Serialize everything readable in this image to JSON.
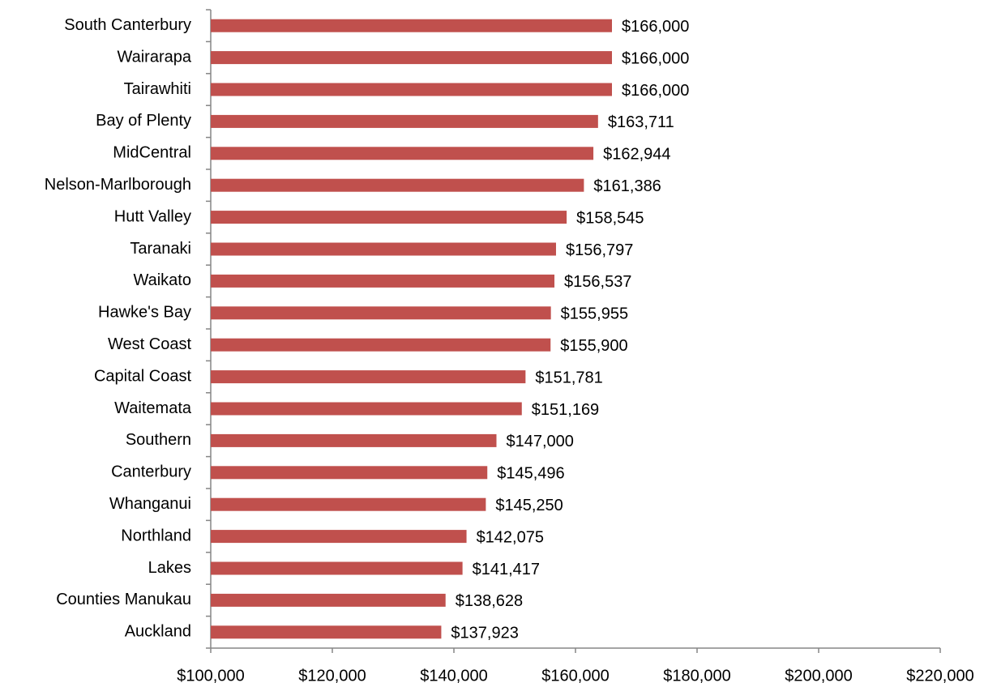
{
  "chart_data": {
    "type": "bar",
    "orientation": "horizontal",
    "categories": [
      "South Canterbury",
      "Wairarapa",
      "Tairawhiti",
      "Bay of Plenty",
      "MidCentral",
      "Nelson-Marlborough",
      "Hutt Valley",
      "Taranaki",
      "Waikato",
      "Hawke's Bay",
      "West Coast",
      "Capital Coast",
      "Waitemata",
      "Southern",
      "Canterbury",
      "Whanganui",
      "Northland",
      "Lakes",
      "Counties Manukau",
      "Auckland"
    ],
    "values": [
      166000,
      166000,
      166000,
      163711,
      162944,
      161386,
      158545,
      156797,
      156537,
      155955,
      155900,
      151781,
      151169,
      147000,
      145496,
      145250,
      142075,
      141417,
      138628,
      137923
    ],
    "value_labels": [
      "$166,000",
      "$166,000",
      "$166,000",
      "$163,711",
      "$162,944",
      "$161,386",
      "$158,545",
      "$156,797",
      "$156,537",
      "$155,955",
      "$155,900",
      "$151,781",
      "$151,169",
      "$147,000",
      "$145,496",
      "$145,250",
      "$142,075",
      "$141,417",
      "$138,628",
      "$137,923"
    ],
    "color": "#c0504d",
    "xlim": [
      100000,
      220000
    ],
    "xticks": [
      {
        "value": 100000,
        "label": "$100,000"
      },
      {
        "value": 120000,
        "label": "$120,000"
      },
      {
        "value": 140000,
        "label": "$140,000"
      },
      {
        "value": 160000,
        "label": "$160,000"
      },
      {
        "value": 180000,
        "label": "$180,000"
      },
      {
        "value": 200000,
        "label": "$200,000"
      },
      {
        "value": 220000,
        "label": "$220,000"
      }
    ]
  }
}
